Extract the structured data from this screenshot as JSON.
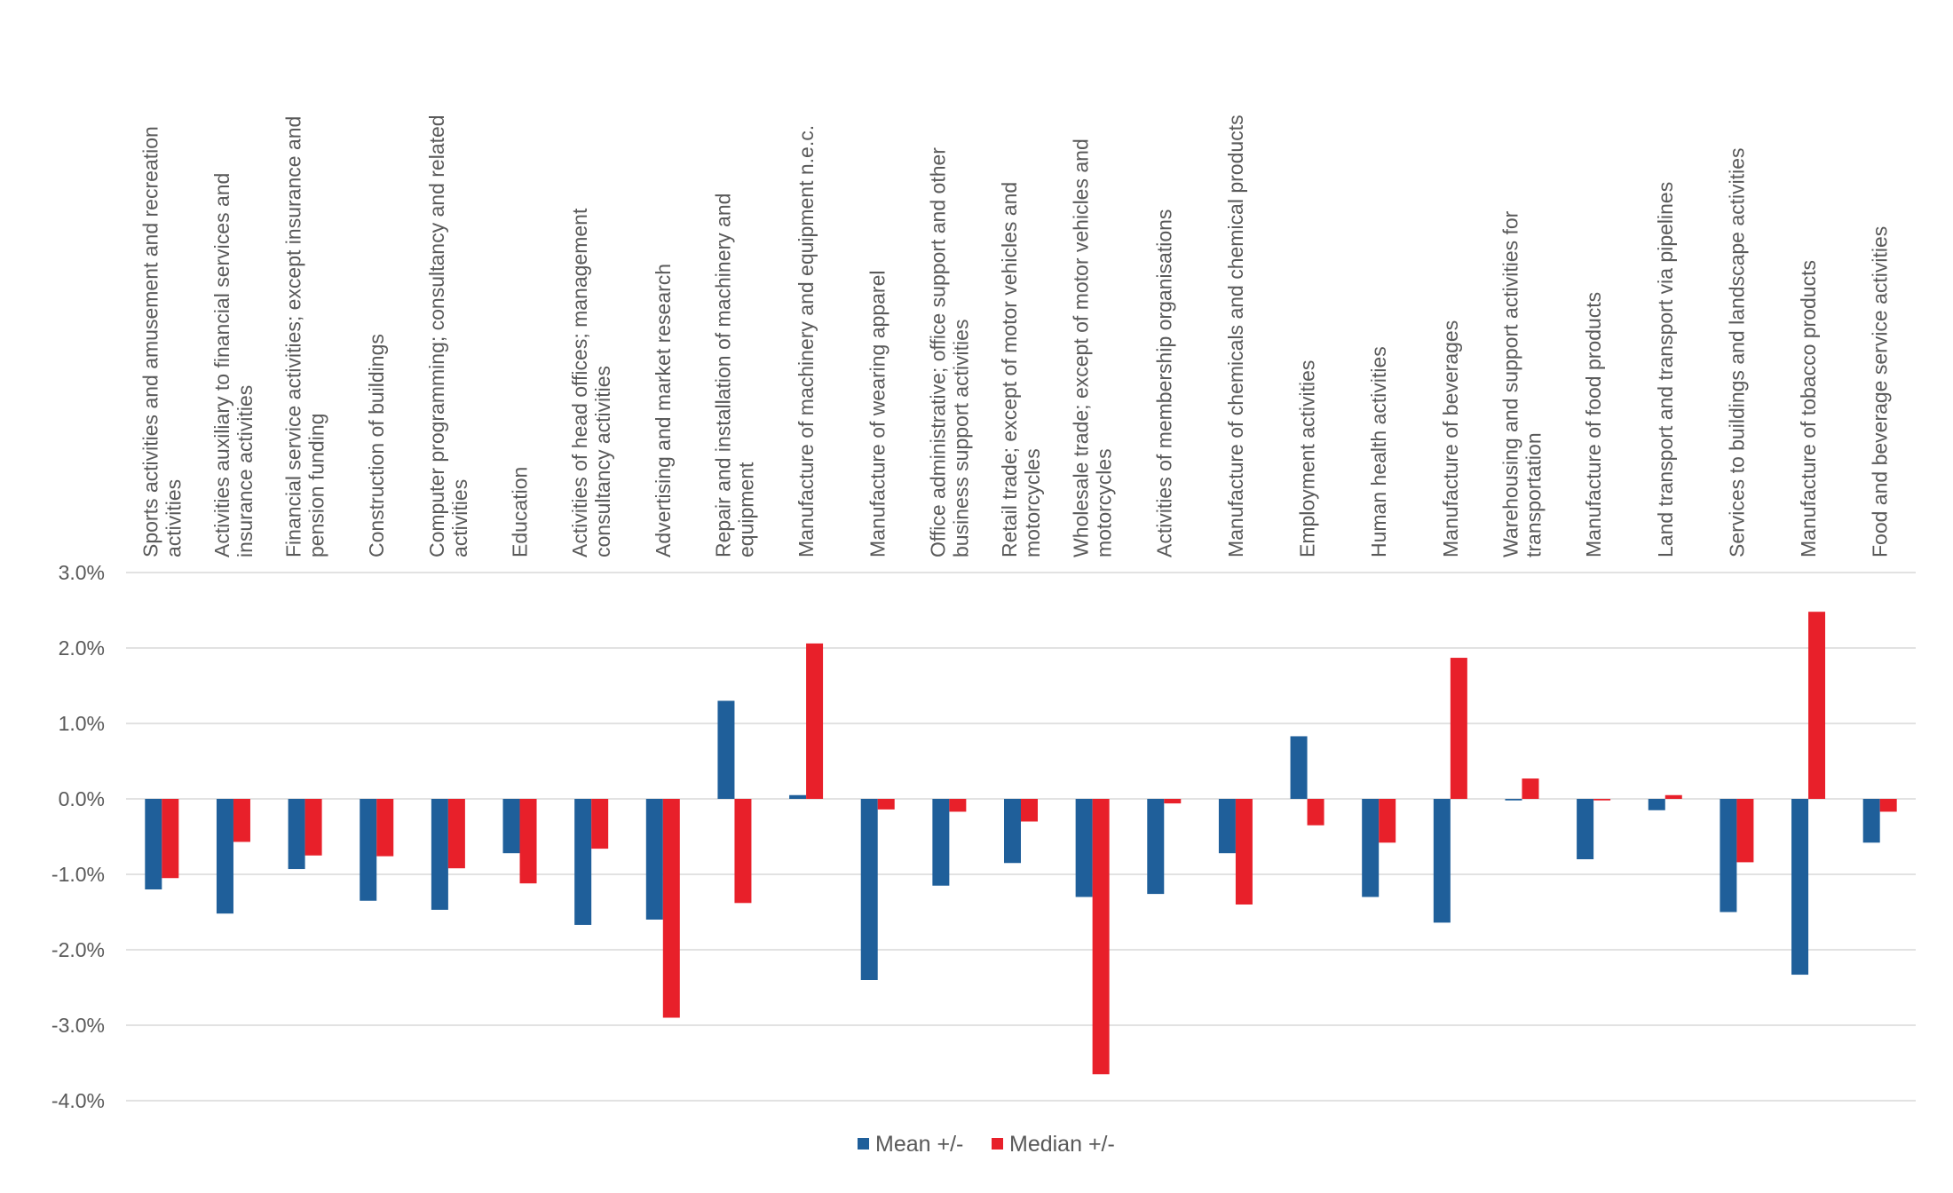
{
  "chart_data": {
    "type": "bar",
    "title": "",
    "xlabel": "",
    "ylabel": "",
    "ylim": [
      -4.0,
      3.0
    ],
    "yticks": [
      "3.0%",
      "2.0%",
      "1.0%",
      "0.0%",
      "-1.0%",
      "-2.0%",
      "-3.0%",
      "-4.0%"
    ],
    "grid": true,
    "legend_position": "bottom",
    "categories": [
      [
        "Sports activities and amusement and recreation",
        "activities"
      ],
      [
        "Activities auxiliary to financial services and",
        "insurance activities"
      ],
      [
        "Financial service activities; except insurance and",
        "pension funding"
      ],
      [
        "Construction of buildings"
      ],
      [
        "Computer programming; consultancy and related",
        "activities"
      ],
      [
        "Education"
      ],
      [
        "Activities of head offices; management",
        "consultancy activities"
      ],
      [
        "Advertising and market research"
      ],
      [
        "Repair and installation of machinery and",
        "equipment"
      ],
      [
        "Manufacture of machinery and equipment n.e.c."
      ],
      [
        "Manufacture of wearing apparel"
      ],
      [
        "Office administrative; office support and other",
        "business support activities"
      ],
      [
        "Retail trade; except of motor vehicles and",
        "motorcycles"
      ],
      [
        "Wholesale trade; except of motor vehicles and",
        "motorcycles"
      ],
      [
        "Activities of membership organisations"
      ],
      [
        "Manufacture of chemicals and chemical products"
      ],
      [
        "Employment activities"
      ],
      [
        "Human health activities"
      ],
      [
        "Manufacture of beverages"
      ],
      [
        "Warehousing and support activities for",
        "transportation"
      ],
      [
        "Manufacture of food products"
      ],
      [
        "Land transport and transport via pipelines"
      ],
      [
        "Services to buildings and landscape activities"
      ],
      [
        "Manufacture of tobacco products"
      ],
      [
        "Food and beverage service activities"
      ]
    ],
    "series": [
      {
        "name": "Mean +/-",
        "color": "#1f5f9a",
        "values": [
          -1.2,
          -1.52,
          -0.93,
          -1.35,
          -1.47,
          -0.72,
          -1.67,
          -1.6,
          1.3,
          0.05,
          -2.4,
          -1.15,
          -0.85,
          -1.3,
          -1.26,
          -0.72,
          0.83,
          -1.3,
          -1.64,
          -0.02,
          -0.8,
          -0.15,
          -1.5,
          -2.33,
          -0.58
        ]
      },
      {
        "name": "Median +/-",
        "color": "#e8202a",
        "values": [
          -1.05,
          -0.57,
          -0.75,
          -0.76,
          -0.92,
          -1.12,
          -0.66,
          -2.9,
          -1.38,
          2.06,
          -0.14,
          -0.17,
          -0.3,
          -3.65,
          -0.06,
          -1.4,
          -0.35,
          -0.58,
          1.87,
          0.27,
          -0.02,
          0.05,
          -0.84,
          2.48,
          -0.17
        ]
      }
    ]
  }
}
